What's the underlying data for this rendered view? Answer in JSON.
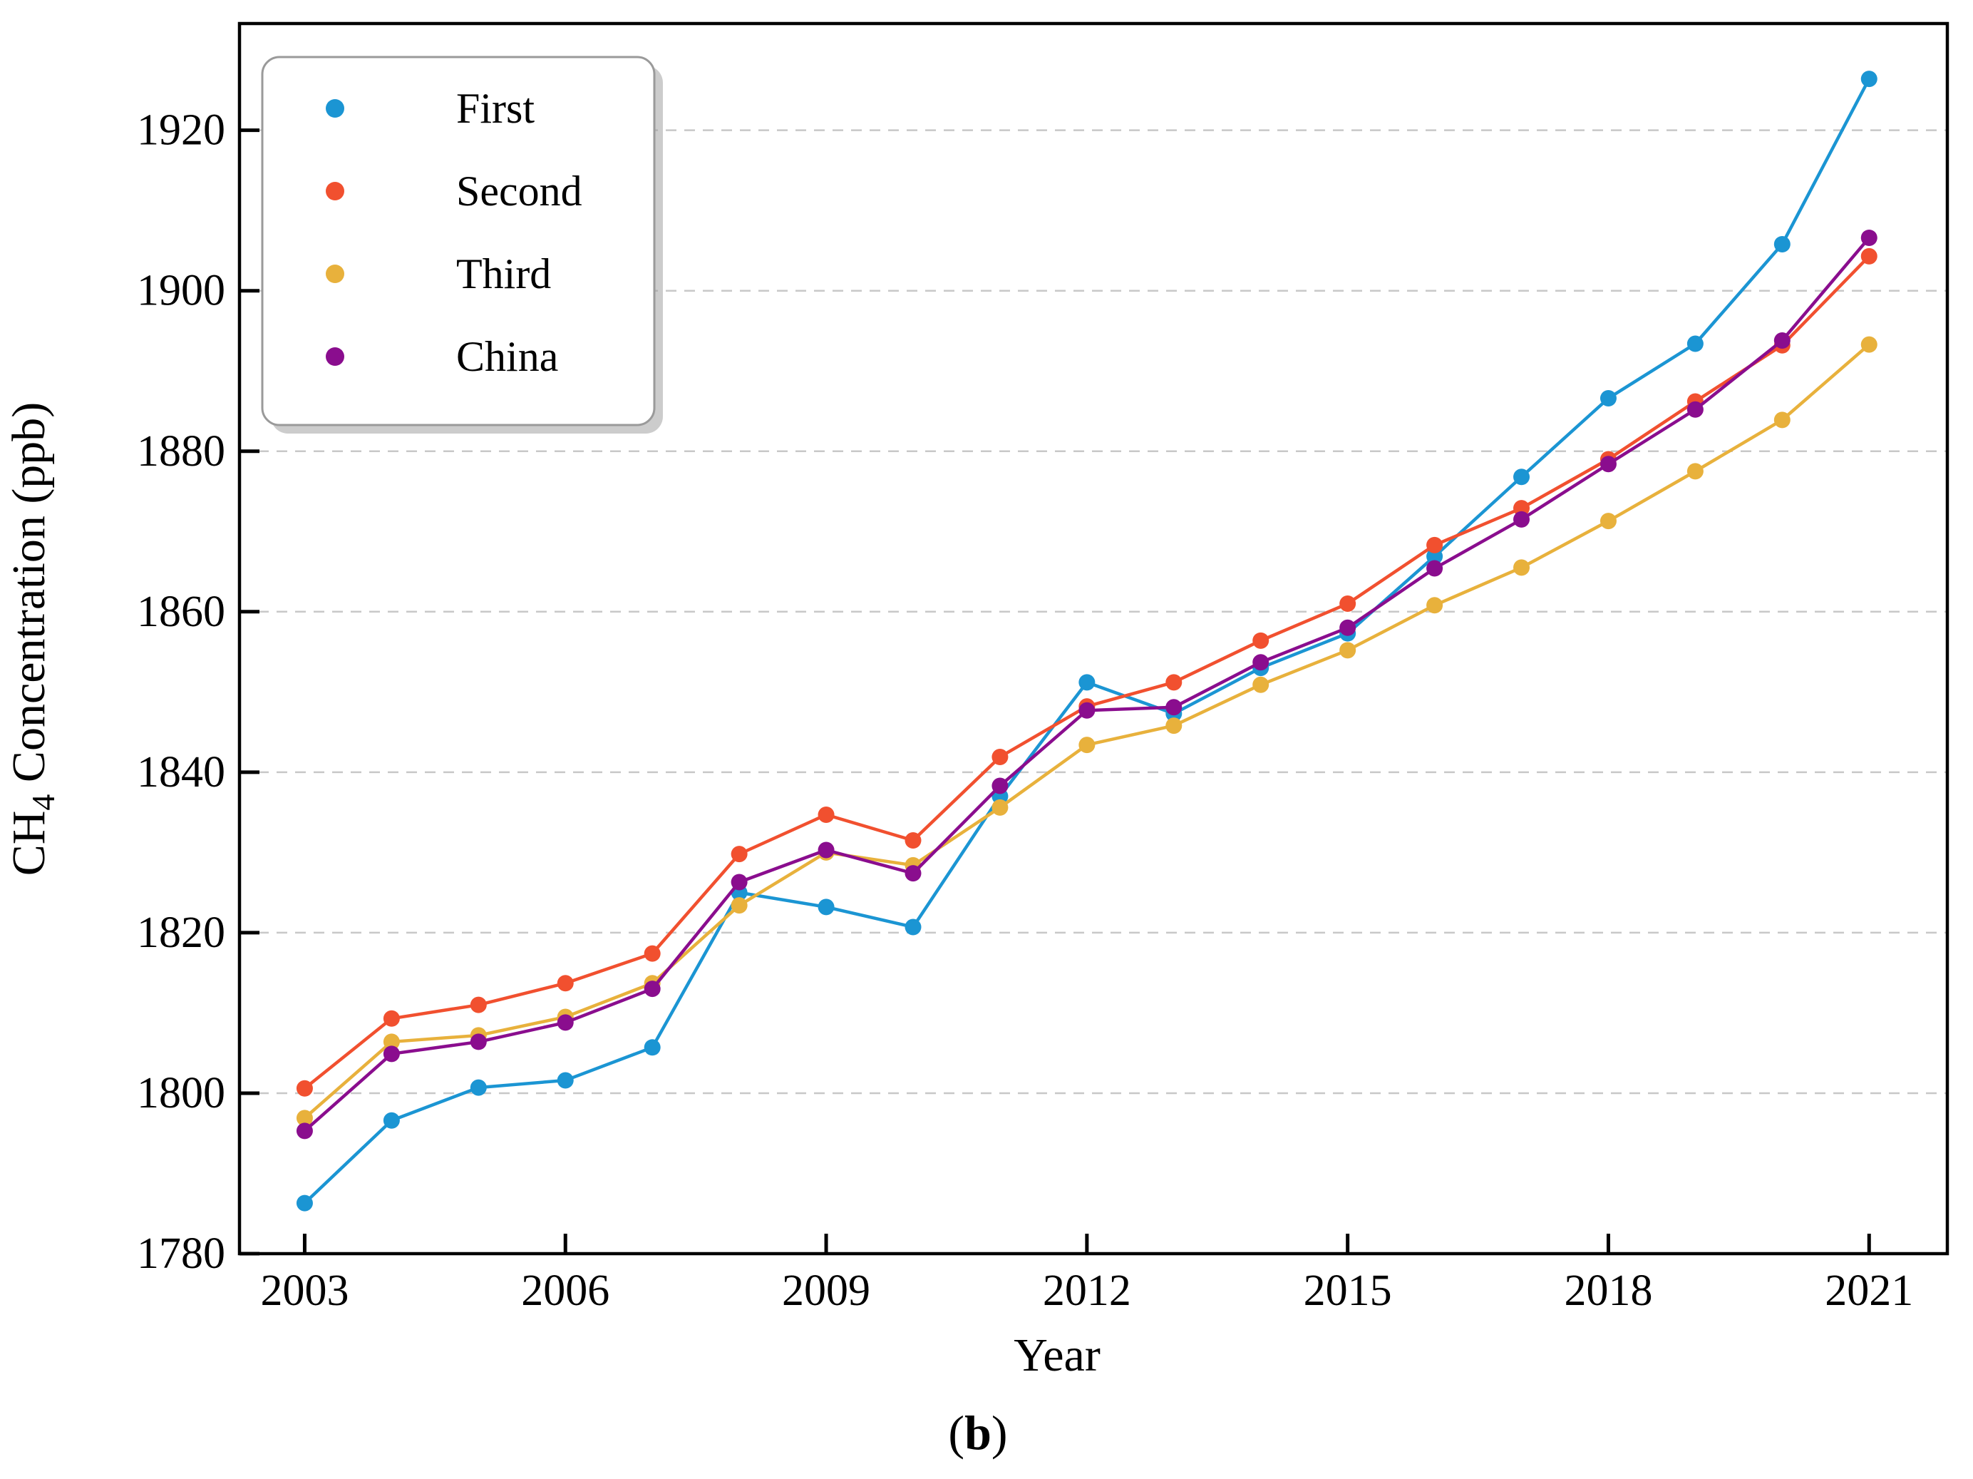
{
  "figure": {
    "background_color": "#ffffff",
    "caption": {
      "open": "(",
      "letter": "b",
      "close": ")"
    },
    "xlabel": "Year",
    "ylabel": {
      "prefix": "CH",
      "sub": "4",
      "suffix": " Concentration (ppb)"
    }
  },
  "legend": {
    "position": "upper-left",
    "items": [
      {
        "label": "First",
        "color": "#1b95d3",
        "marker": "circle"
      },
      {
        "label": "Second",
        "color": "#f1502f",
        "marker": "circle"
      },
      {
        "label": "Third",
        "color": "#e8b13c",
        "marker": "circle"
      },
      {
        "label": "China",
        "color": "#8a0d8e",
        "marker": "circle"
      }
    ]
  },
  "chart_data": {
    "type": "line",
    "title": "",
    "xlabel": "Year",
    "ylabel": "CH4 Concentration (ppb)",
    "x": [
      2003,
      2004,
      2005,
      2006,
      2007,
      2008,
      2009,
      2010,
      2011,
      2012,
      2013,
      2014,
      2015,
      2016,
      2017,
      2018,
      2019,
      2020,
      2021
    ],
    "x_ticks": [
      2003,
      2006,
      2009,
      2012,
      2015,
      2018,
      2021
    ],
    "y_ticks": [
      1780,
      1800,
      1820,
      1840,
      1860,
      1880,
      1900,
      1920
    ],
    "xlim": [
      2002.25,
      2021.9
    ],
    "ylim": [
      1780,
      1933.3
    ],
    "grid": "horizontal-dashed",
    "grid_color": "#c8c8c8",
    "legend_position": "upper-left",
    "series": [
      {
        "name": "First",
        "color": "#1b95d3",
        "values": [
          1786.3,
          1796.6,
          1800.7,
          1801.6,
          1805.7,
          1825.0,
          1823.2,
          1820.7,
          1837.0,
          1851.2,
          1847.3,
          1853.0,
          1857.3,
          1866.9,
          1876.8,
          1886.6,
          1893.4,
          1905.8,
          1926.4
        ]
      },
      {
        "name": "Second",
        "color": "#f1502f",
        "values": [
          1800.6,
          1809.3,
          1811.0,
          1813.7,
          1817.4,
          1829.8,
          1834.7,
          1831.5,
          1841.9,
          1848.2,
          1851.2,
          1856.4,
          1861.0,
          1868.3,
          1872.9,
          1879.0,
          1886.2,
          1893.2,
          1904.3
        ]
      },
      {
        "name": "Third",
        "color": "#e8b13c",
        "values": [
          1796.9,
          1806.4,
          1807.2,
          1809.5,
          1813.7,
          1823.4,
          1830.0,
          1828.4,
          1835.6,
          1843.4,
          1845.8,
          1850.9,
          1855.2,
          1860.8,
          1865.5,
          1871.3,
          1877.5,
          1883.9,
          1893.3
        ]
      },
      {
        "name": "China",
        "color": "#8a0d8e",
        "values": [
          1795.3,
          1804.9,
          1806.4,
          1808.8,
          1813.0,
          1826.3,
          1830.3,
          1827.4,
          1838.3,
          1847.7,
          1848.1,
          1853.7,
          1858.0,
          1865.4,
          1871.5,
          1878.4,
          1885.2,
          1893.8,
          1906.6
        ]
      }
    ]
  }
}
